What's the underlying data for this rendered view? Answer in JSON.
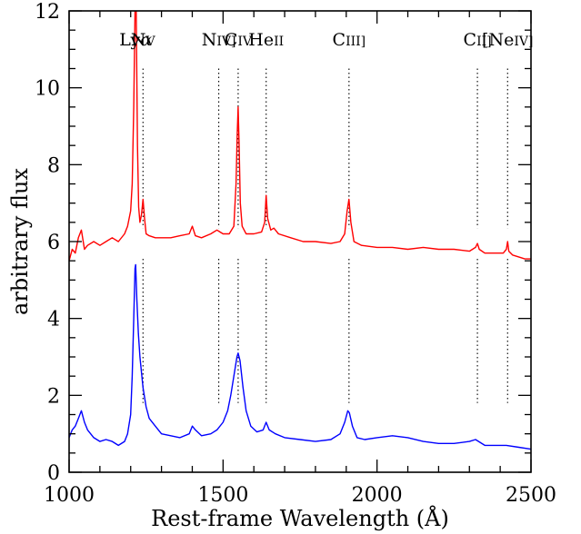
{
  "chart_data": {
    "type": "line",
    "xlabel": "Rest-frame Wavelength (Å)",
    "ylabel": "arbitrary flux",
    "xlim": [
      1000,
      2500
    ],
    "ylim": [
      0,
      12
    ],
    "x_ticks": [
      1000,
      1500,
      2000,
      2500
    ],
    "y_ticks": [
      0,
      2,
      4,
      6,
      8,
      10,
      12
    ],
    "x_tick_labels": [
      "1000",
      "1500",
      "2000",
      "2500"
    ],
    "y_tick_labels": [
      "0",
      "2",
      "4",
      "6",
      "8",
      "10",
      "12"
    ],
    "x_minor_step": 100,
    "y_minor_step": 0.5,
    "grid": false,
    "emission_lines": [
      {
        "label": "Lyα",
        "main": "Ly",
        "suffix": "α",
        "suffix_style": "greek",
        "wavelength": 1216,
        "show_marker": false
      },
      {
        "label": "NV",
        "main": "N",
        "suffix": "V",
        "suffix_style": "smallcaps",
        "wavelength": 1240,
        "show_marker": true
      },
      {
        "label": "NIV]",
        "main": "N",
        "suffix": "IV]",
        "suffix_style": "smallcaps",
        "wavelength": 1486,
        "show_marker": true
      },
      {
        "label": "CIV",
        "main": "C",
        "suffix": "IV",
        "suffix_style": "smallcaps",
        "wavelength": 1549,
        "show_marker": true
      },
      {
        "label": "HeII",
        "main": "He",
        "suffix": "II",
        "suffix_style": "smallcaps",
        "wavelength": 1640,
        "show_marker": true
      },
      {
        "label": "CIII]",
        "main": "C",
        "suffix": "III]",
        "suffix_style": "smallcaps",
        "wavelength": 1909,
        "show_marker": true
      },
      {
        "label": "CII]",
        "main": "C",
        "suffix": "II]",
        "suffix_style": "smallcaps",
        "wavelength": 2326,
        "show_marker": true
      },
      {
        "label": "[NeIV]",
        "main": "[Ne",
        "suffix": "IV]",
        "suffix_style": "smallcaps",
        "wavelength": 2424,
        "show_marker": true
      }
    ],
    "series": [
      {
        "color": "#ff0000",
        "x": [
          1000,
          1010,
          1020,
          1030,
          1040,
          1050,
          1060,
          1080,
          1100,
          1120,
          1140,
          1160,
          1180,
          1190,
          1200,
          1205,
          1210,
          1214,
          1216,
          1218,
          1222,
          1226,
          1230,
          1235,
          1240,
          1245,
          1250,
          1260,
          1280,
          1300,
          1330,
          1360,
          1390,
          1400,
          1410,
          1430,
          1460,
          1480,
          1490,
          1500,
          1520,
          1535,
          1542,
          1546,
          1549,
          1552,
          1556,
          1562,
          1575,
          1600,
          1625,
          1635,
          1640,
          1645,
          1655,
          1665,
          1680,
          1720,
          1760,
          1800,
          1850,
          1880,
          1895,
          1903,
          1909,
          1915,
          1925,
          1950,
          2000,
          2050,
          2100,
          2150,
          2200,
          2250,
          2300,
          2320,
          2326,
          2332,
          2350,
          2380,
          2410,
          2420,
          2424,
          2428,
          2440,
          2460,
          2480,
          2500
        ],
        "y": [
          5.5,
          5.8,
          5.7,
          6.1,
          6.3,
          5.8,
          5.9,
          6.0,
          5.9,
          6.0,
          6.1,
          6.0,
          6.2,
          6.4,
          6.8,
          7.5,
          9.5,
          12.0,
          12.0,
          12.0,
          8.5,
          6.9,
          6.5,
          6.7,
          7.1,
          6.6,
          6.2,
          6.15,
          6.1,
          6.1,
          6.1,
          6.15,
          6.2,
          6.4,
          6.15,
          6.1,
          6.2,
          6.3,
          6.25,
          6.2,
          6.2,
          6.4,
          7.5,
          8.8,
          9.5,
          8.6,
          7.0,
          6.4,
          6.2,
          6.2,
          6.25,
          6.5,
          7.2,
          6.6,
          6.3,
          6.35,
          6.2,
          6.1,
          6.0,
          6.0,
          5.95,
          6.0,
          6.2,
          6.8,
          7.1,
          6.5,
          6.0,
          5.9,
          5.85,
          5.85,
          5.8,
          5.85,
          5.8,
          5.8,
          5.75,
          5.85,
          5.95,
          5.8,
          5.7,
          5.7,
          5.7,
          5.8,
          6.0,
          5.75,
          5.65,
          5.6,
          5.55,
          5.55
        ]
      },
      {
        "color": "#0000ff",
        "x": [
          1000,
          1010,
          1020,
          1030,
          1040,
          1050,
          1060,
          1080,
          1100,
          1120,
          1140,
          1160,
          1180,
          1190,
          1200,
          1205,
          1210,
          1214,
          1216,
          1220,
          1225,
          1230,
          1240,
          1250,
          1260,
          1280,
          1300,
          1330,
          1360,
          1390,
          1400,
          1410,
          1430,
          1460,
          1480,
          1500,
          1515,
          1525,
          1535,
          1545,
          1549,
          1555,
          1565,
          1575,
          1590,
          1610,
          1630,
          1640,
          1650,
          1670,
          1700,
          1750,
          1800,
          1850,
          1880,
          1895,
          1905,
          1910,
          1920,
          1935,
          1960,
          2000,
          2050,
          2100,
          2150,
          2200,
          2250,
          2300,
          2320,
          2330,
          2350,
          2380,
          2420,
          2460,
          2500
        ],
        "y": [
          0.9,
          1.1,
          1.2,
          1.4,
          1.6,
          1.3,
          1.1,
          0.9,
          0.8,
          0.85,
          0.8,
          0.7,
          0.8,
          1.0,
          1.5,
          2.5,
          4.0,
          5.3,
          5.4,
          4.5,
          3.6,
          3.0,
          2.2,
          1.7,
          1.4,
          1.2,
          1.0,
          0.95,
          0.9,
          1.0,
          1.2,
          1.1,
          0.95,
          1.0,
          1.1,
          1.3,
          1.6,
          2.0,
          2.5,
          3.0,
          3.1,
          2.9,
          2.2,
          1.6,
          1.2,
          1.05,
          1.1,
          1.3,
          1.1,
          1.0,
          0.9,
          0.85,
          0.8,
          0.85,
          1.0,
          1.3,
          1.6,
          1.55,
          1.2,
          0.9,
          0.85,
          0.9,
          0.95,
          0.9,
          0.8,
          0.75,
          0.75,
          0.8,
          0.85,
          0.8,
          0.7,
          0.7,
          0.7,
          0.65,
          0.6
        ]
      }
    ]
  }
}
